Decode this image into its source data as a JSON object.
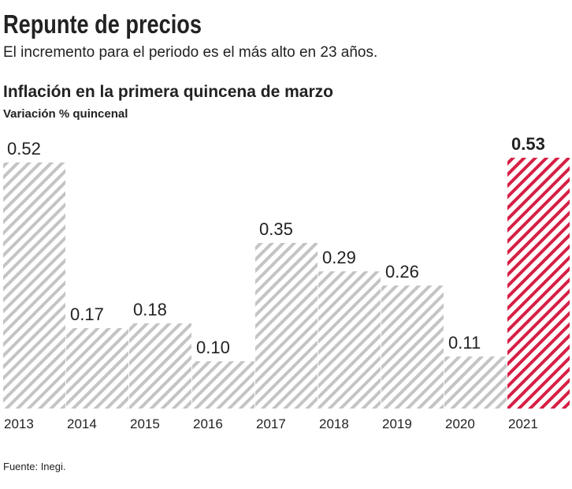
{
  "header": {
    "title": "Repunte de precios",
    "subtitle": "El incremento para el periodo es el más alto en 23 años."
  },
  "chart_data": {
    "type": "bar",
    "title": "Inflación en la primera quincena de marzo",
    "ylabel": "Variación % quincenal",
    "categories": [
      "2013",
      "2014",
      "2015",
      "2016",
      "2017",
      "2018",
      "2019",
      "2020",
      "2021"
    ],
    "values": [
      0.52,
      0.17,
      0.18,
      0.1,
      0.35,
      0.29,
      0.26,
      0.11,
      0.53
    ],
    "value_labels": [
      "0.52",
      "0.17",
      "0.18",
      "0.10",
      "0.35",
      "0.29",
      "0.26",
      "0.11",
      "0.53"
    ],
    "colors": [
      "#c4c4c4",
      "#c4c4c4",
      "#c4c4c4",
      "#c4c4c4",
      "#c4c4c4",
      "#c4c4c4",
      "#c4c4c4",
      "#c4c4c4",
      "#d61f45"
    ]
  },
  "footer": {
    "source": "Fuente: Inegi."
  }
}
